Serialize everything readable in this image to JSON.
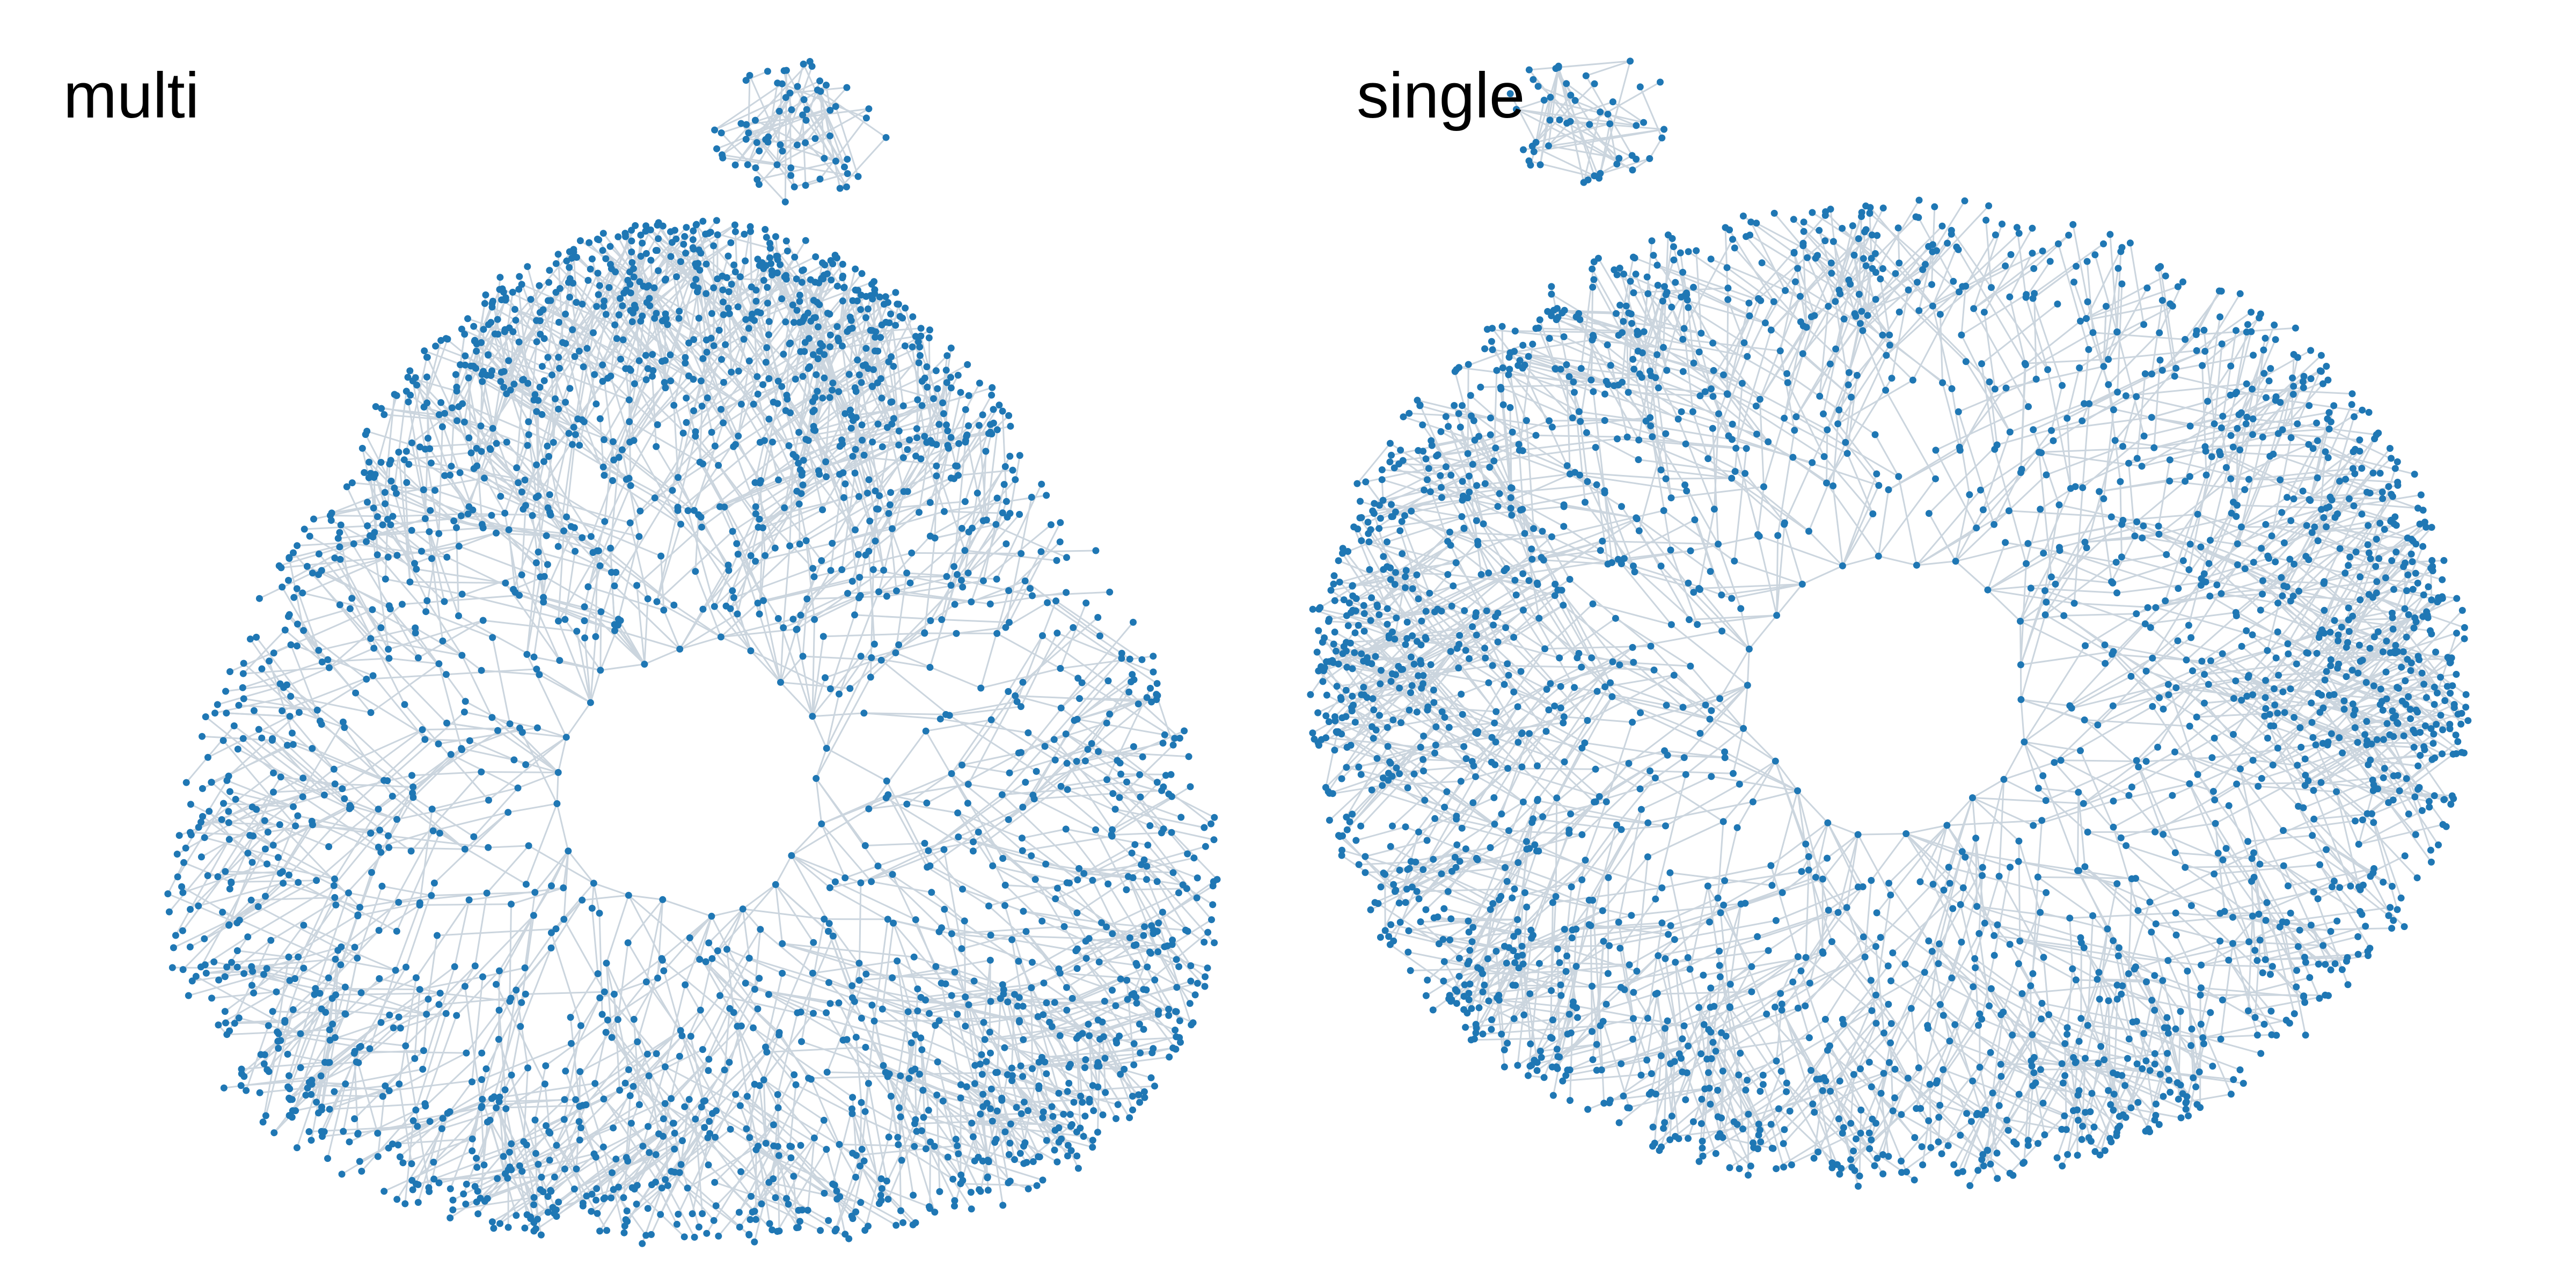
{
  "panels": [
    {
      "title": "multi",
      "node_color": "#1f77b4",
      "edge_color": "#cbd5de"
    },
    {
      "title": "single",
      "node_color": "#1f77b4",
      "edge_color": "#cbd5de"
    }
  ],
  "colors": {
    "background": "#ffffff",
    "node": "#1f77b4",
    "edge": "#cbd5de"
  }
}
